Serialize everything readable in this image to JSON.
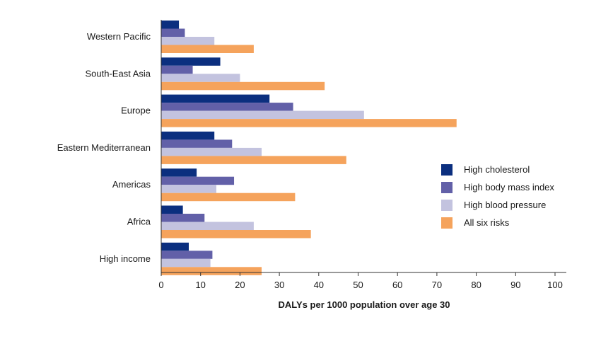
{
  "chart_data": {
    "type": "bar",
    "orientation": "horizontal",
    "categories": [
      "Western Pacific",
      "South-East Asia",
      "Europe",
      "Eastern Mediterranean",
      "Americas",
      "Africa",
      "High income"
    ],
    "series": [
      {
        "name": "High cholesterol",
        "color": "#0b2f7f",
        "values": [
          4.5,
          15,
          27.5,
          13.5,
          9,
          5.5,
          7
        ]
      },
      {
        "name": "High body mass index",
        "color": "#6260a8",
        "values": [
          6,
          8,
          33.5,
          18,
          18.5,
          11,
          13
        ]
      },
      {
        "name": "High blood pressure",
        "color": "#c3c3df",
        "values": [
          13.5,
          20,
          51.5,
          25.5,
          14,
          23.5,
          12.5
        ]
      },
      {
        "name": "All six risks",
        "color": "#f5a35c",
        "values": [
          23.5,
          41.5,
          75,
          47,
          34,
          38,
          25.5
        ]
      }
    ],
    "xlabel": "DALYs per 1000 population over age 30",
    "ylabel": "",
    "xlim": [
      0,
      100
    ],
    "xticks": [
      "0",
      "10",
      "20",
      "30",
      "40",
      "50",
      "60",
      "70",
      "80",
      "90",
      "100"
    ],
    "grid": false,
    "legend_position": "right"
  }
}
